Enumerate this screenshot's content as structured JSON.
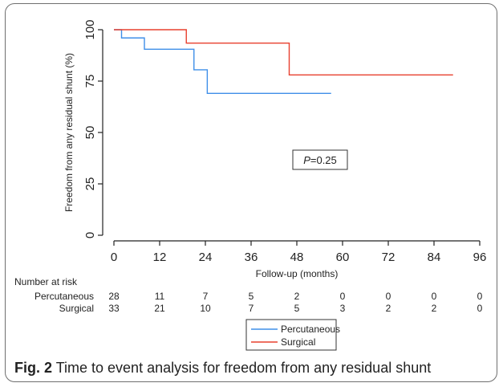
{
  "chart_data": {
    "type": "line",
    "xlabel": "Follow-up (months)",
    "ylabel": "Freedom from any residual shunt (%)",
    "xlim": [
      0,
      96
    ],
    "ylim": [
      0,
      100
    ],
    "xticks": [
      0,
      12,
      24,
      36,
      48,
      60,
      72,
      84,
      96
    ],
    "yticks": [
      0,
      25,
      50,
      75,
      100
    ],
    "legend_position": "bottom-center",
    "annotation": {
      "italic": "P",
      "text": "=0.25"
    },
    "series": [
      {
        "name": "Percutaneous",
        "color": "#3f8fe8",
        "steps": [
          [
            0,
            100
          ],
          [
            2,
            96
          ],
          [
            8,
            90.5
          ],
          [
            21,
            80.5
          ],
          [
            24.5,
            69
          ],
          [
            57,
            69
          ]
        ]
      },
      {
        "name": "Surgical",
        "color": "#e8402f",
        "steps": [
          [
            0,
            100
          ],
          [
            19,
            93.5
          ],
          [
            46,
            78
          ],
          [
            89,
            78
          ]
        ]
      }
    ],
    "risk_table": {
      "title": "Number at risk",
      "rows": [
        {
          "label": "Percutaneous",
          "values": [
            "28",
            "11",
            "7",
            "5",
            "2",
            "0",
            "0",
            "0",
            "0"
          ]
        },
        {
          "label": "Surgical",
          "values": [
            "33",
            "21",
            "10",
            "7",
            "5",
            "3",
            "2",
            "2",
            "0"
          ]
        }
      ]
    }
  },
  "caption": {
    "label": "Fig. 2",
    "text": " Time to event analysis for freedom from any residual shunt"
  }
}
